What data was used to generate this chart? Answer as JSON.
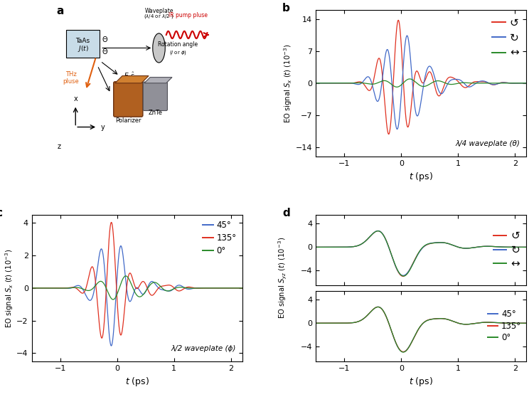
{
  "panel_b": {
    "title_text": "λ/4 waveplate (θ)",
    "ylabel": "EO signal $S_x$ $(t)$ $(10^{-3})$",
    "xlabel": "$t$ (ps)",
    "ylim": [
      -16,
      16
    ],
    "yticks": [
      -14,
      -7,
      0,
      7,
      14
    ],
    "xlim": [
      -1.5,
      2.2
    ],
    "xticks": [
      -1,
      0,
      1,
      2
    ],
    "colors": [
      "#e03020",
      "#4169c8",
      "#2a8a2a"
    ]
  },
  "panel_c": {
    "title_text": "λ/2 waveplate (ϕ)",
    "ylabel": "EO signal $S_x$ $(t)$ $(10^{-3})$",
    "xlabel": "$t$ (ps)",
    "ylim": [
      -4.5,
      4.5
    ],
    "yticks": [
      -4,
      -2,
      0,
      2,
      4
    ],
    "xlim": [
      -1.5,
      2.2
    ],
    "xticks": [
      -1,
      0,
      1,
      2
    ],
    "colors": [
      "#4169c8",
      "#e03020",
      "#2a8a2a"
    ]
  },
  "panel_d": {
    "ylabel": "EO signal $S_{yz}$ $(t)$ $(10^{-3})$",
    "xlabel": "$t$ (ps)",
    "ylim1": [
      -0.5,
      5.5
    ],
    "ylim2": [
      -5.5,
      0.5
    ],
    "yticks1": [
      0,
      4
    ],
    "yticks2": [
      -4,
      0
    ],
    "xlim": [
      -1.5,
      2.2
    ],
    "xticks": [
      -1,
      0,
      1,
      2
    ],
    "colors1": [
      "#e03020",
      "#4169c8",
      "#2a8a2a"
    ],
    "colors2": [
      "#4169c8",
      "#e03020",
      "#2a8a2a"
    ]
  }
}
